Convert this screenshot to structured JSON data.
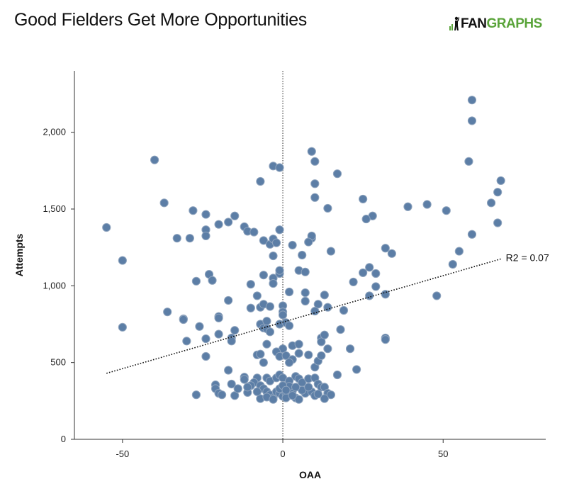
{
  "header": {
    "title": "Good Fielders Get More Opportunities",
    "logo_text_a": "FAN",
    "logo_text_b": "GRAPHS"
  },
  "colors": {
    "point_fill": "#5c7ea6",
    "point_stroke": "#8ea3bd",
    "brand_green": "#5aa43a"
  },
  "chart_data": {
    "type": "scatter",
    "title": "Good Fielders Get More Opportunities",
    "xlabel": "OAA",
    "ylabel": "Attempts",
    "xlim": [
      -65,
      82
    ],
    "ylim": [
      0,
      2400
    ],
    "xticks": [
      -50,
      0,
      50
    ],
    "xtick_labels": [
      "-50",
      "0",
      "50"
    ],
    "yticks": [
      0,
      500,
      1000,
      1500,
      2000
    ],
    "ytick_labels": [
      "0",
      "500",
      "1,000",
      "1,500",
      "2,000"
    ],
    "grid": false,
    "vline_x": 0,
    "trendline": {
      "x1": -55,
      "y1": 430,
      "x2": 68,
      "y2": 1175,
      "label": "R2 = 0.07"
    },
    "points": [
      [
        59,
        2210
      ],
      [
        59,
        2075
      ],
      [
        58,
        1810
      ],
      [
        -40,
        1820
      ],
      [
        9,
        1875
      ],
      [
        10,
        1810
      ],
      [
        -3,
        1780
      ],
      [
        -1,
        1770
      ],
      [
        17,
        1730
      ],
      [
        -7,
        1680
      ],
      [
        10,
        1665
      ],
      [
        68,
        1685
      ],
      [
        67,
        1610
      ],
      [
        65,
        1540
      ],
      [
        25,
        1565
      ],
      [
        -37,
        1540
      ],
      [
        10,
        1575
      ],
      [
        14,
        1505
      ],
      [
        28,
        1455
      ],
      [
        39,
        1515
      ],
      [
        45,
        1530
      ],
      [
        51,
        1490
      ],
      [
        26,
        1435
      ],
      [
        -28,
        1490
      ],
      [
        -24,
        1465
      ],
      [
        -15,
        1455
      ],
      [
        -20,
        1400
      ],
      [
        -55,
        1380
      ],
      [
        -17,
        1415
      ],
      [
        -12,
        1385
      ],
      [
        -11,
        1355
      ],
      [
        -9,
        1350
      ],
      [
        -1,
        1365
      ],
      [
        67,
        1410
      ],
      [
        59,
        1335
      ],
      [
        -24,
        1365
      ],
      [
        -24,
        1325
      ],
      [
        -33,
        1310
      ],
      [
        -29,
        1310
      ],
      [
        -6,
        1295
      ],
      [
        -4,
        1270
      ],
      [
        -3,
        1305
      ],
      [
        -2,
        1280
      ],
      [
        3,
        1265
      ],
      [
        6,
        1200
      ],
      [
        9,
        1310
      ],
      [
        9,
        1325
      ],
      [
        8,
        1285
      ],
      [
        15,
        1225
      ],
      [
        32,
        1245
      ],
      [
        34,
        1210
      ],
      [
        55,
        1225
      ],
      [
        53,
        1140
      ],
      [
        -50,
        1165
      ],
      [
        -3,
        1195
      ],
      [
        -6,
        1070
      ],
      [
        -1,
        1080
      ],
      [
        -3,
        1050
      ],
      [
        -3,
        1015
      ],
      [
        -10,
        1010
      ],
      [
        -23,
        1075
      ],
      [
        -22,
        1035
      ],
      [
        -27,
        1030
      ],
      [
        -1,
        1100
      ],
      [
        5,
        1100
      ],
      [
        7,
        1090
      ],
      [
        25,
        1085
      ],
      [
        27,
        1120
      ],
      [
        29,
        1080
      ],
      [
        22,
        1025
      ],
      [
        27,
        935
      ],
      [
        29,
        995
      ],
      [
        32,
        945
      ],
      [
        48,
        935
      ],
      [
        13,
        940
      ],
      [
        11,
        880
      ],
      [
        14,
        860
      ],
      [
        19,
        840
      ],
      [
        7,
        955
      ],
      [
        7,
        900
      ],
      [
        2,
        960
      ],
      [
        -36,
        830
      ],
      [
        -17,
        905
      ],
      [
        -10,
        855
      ],
      [
        -8,
        935
      ],
      [
        -7,
        860
      ],
      [
        -6,
        880
      ],
      [
        -4,
        865
      ],
      [
        0,
        870
      ],
      [
        0,
        830
      ],
      [
        0,
        810
      ],
      [
        10,
        835
      ],
      [
        -31,
        785
      ],
      [
        -31,
        780
      ],
      [
        -20,
        800
      ],
      [
        -20,
        790
      ],
      [
        -26,
        735
      ],
      [
        -50,
        730
      ],
      [
        -15,
        710
      ],
      [
        -7,
        750
      ],
      [
        -6,
        725
      ],
      [
        -5,
        770
      ],
      [
        -5,
        720
      ],
      [
        -1,
        750
      ],
      [
        1,
        760
      ],
      [
        2,
        740
      ],
      [
        -24,
        655
      ],
      [
        -30,
        640
      ],
      [
        -20,
        685
      ],
      [
        -16,
        660
      ],
      [
        -16,
        640
      ],
      [
        -5,
        620
      ],
      [
        -4,
        700
      ],
      [
        3,
        610
      ],
      [
        5,
        620
      ],
      [
        0,
        590
      ],
      [
        12,
        660
      ],
      [
        12,
        635
      ],
      [
        13,
        680
      ],
      [
        18,
        715
      ],
      [
        14,
        590
      ],
      [
        21,
        590
      ],
      [
        32,
        660
      ],
      [
        32,
        650
      ],
      [
        -24,
        540
      ],
      [
        -17,
        450
      ],
      [
        -16,
        360
      ],
      [
        -8,
        550
      ],
      [
        -7,
        555
      ],
      [
        -2,
        570
      ],
      [
        -1,
        540
      ],
      [
        1,
        545
      ],
      [
        3,
        520
      ],
      [
        5,
        560
      ],
      [
        8,
        550
      ],
      [
        10,
        470
      ],
      [
        11,
        510
      ],
      [
        12,
        545
      ],
      [
        17,
        420
      ],
      [
        23,
        455
      ],
      [
        -6,
        500
      ],
      [
        2,
        500
      ],
      [
        -12,
        405
      ],
      [
        -12,
        390
      ],
      [
        -8,
        400
      ],
      [
        -5,
        400
      ],
      [
        -4,
        380
      ],
      [
        -2,
        400
      ],
      [
        -1,
        420
      ],
      [
        0,
        400
      ],
      [
        2,
        380
      ],
      [
        4,
        410
      ],
      [
        5,
        395
      ],
      [
        6,
        370
      ],
      [
        8,
        395
      ],
      [
        10,
        400
      ],
      [
        11,
        360
      ],
      [
        12,
        340
      ],
      [
        13,
        340
      ],
      [
        14,
        300
      ],
      [
        15,
        290
      ],
      [
        -27,
        290
      ],
      [
        -21,
        355
      ],
      [
        -21,
        330
      ],
      [
        -20,
        300
      ],
      [
        -19,
        290
      ],
      [
        -15,
        285
      ],
      [
        -14,
        330
      ],
      [
        -11,
        305
      ],
      [
        -9,
        370
      ],
      [
        -7,
        350
      ],
      [
        -6,
        330
      ],
      [
        -5,
        310
      ],
      [
        -4,
        290
      ],
      [
        -3,
        270
      ],
      [
        -2,
        310
      ],
      [
        -1,
        300
      ],
      [
        0,
        280
      ],
      [
        1,
        300
      ],
      [
        2,
        290
      ],
      [
        3,
        315
      ],
      [
        4,
        270
      ],
      [
        5,
        260
      ],
      [
        7,
        300
      ],
      [
        9,
        310
      ],
      [
        10,
        285
      ],
      [
        11,
        295
      ],
      [
        13,
        265
      ],
      [
        -7,
        265
      ],
      [
        -5,
        275
      ],
      [
        -3,
        260
      ],
      [
        1,
        270
      ],
      [
        3,
        285
      ],
      [
        6,
        320
      ],
      [
        -10,
        350
      ],
      [
        -8,
        310
      ],
      [
        -1,
        330
      ],
      [
        2,
        345
      ],
      [
        8,
        340
      ],
      [
        -11,
        340
      ],
      [
        0,
        350
      ],
      [
        1,
        320
      ],
      [
        4,
        340
      ]
    ]
  }
}
